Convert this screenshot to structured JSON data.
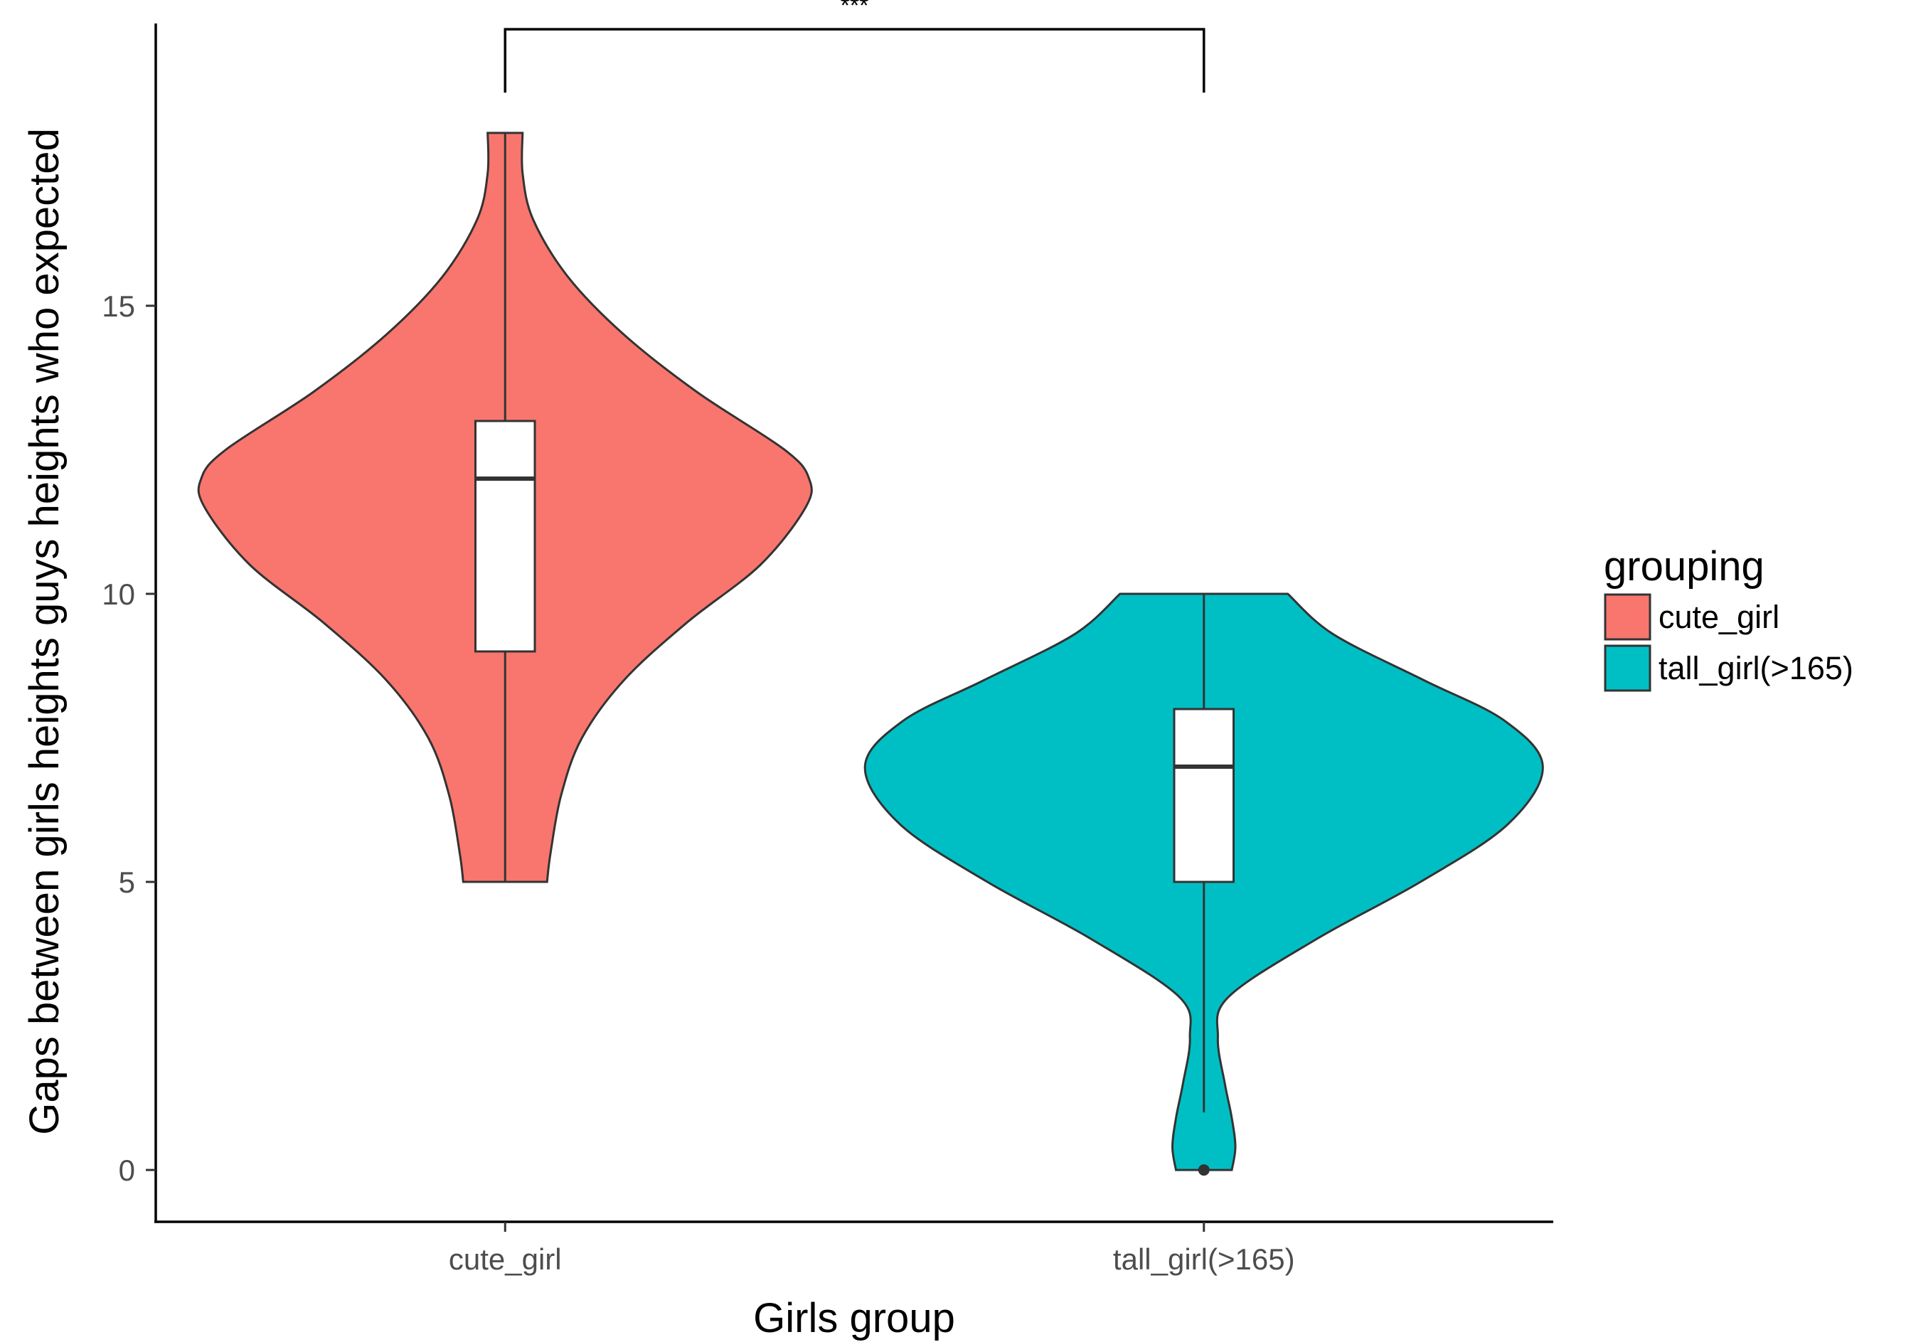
{
  "chart_data": {
    "type": "violin",
    "xlabel": "Girls group",
    "ylabel": "Gaps between girls heights guys heights who expected",
    "ylim": [
      -0.9,
      19.9
    ],
    "yticks": [
      0,
      5,
      10,
      15
    ],
    "categories": [
      "cute_girl",
      "tall_girl(>165)"
    ],
    "grid": false,
    "legend": {
      "title": "grouping",
      "position": "right",
      "entries": [
        {
          "label": "cute_girl",
          "color": "#F8766D"
        },
        {
          "label": "tall_girl(>165)",
          "color": "#00BFC4"
        }
      ]
    },
    "series": [
      {
        "name": "cute_girl",
        "color": "#F8766D",
        "violin_halfwidth": [
          [
            5,
            0.12
          ],
          [
            5.5,
            0.13
          ],
          [
            6.5,
            0.16
          ],
          [
            7.5,
            0.22
          ],
          [
            8.5,
            0.34
          ],
          [
            9.5,
            0.52
          ],
          [
            10.5,
            0.73
          ],
          [
            11.5,
            0.86
          ],
          [
            12,
            0.87
          ],
          [
            12.5,
            0.8
          ],
          [
            13.5,
            0.55
          ],
          [
            14.5,
            0.34
          ],
          [
            15.5,
            0.18
          ],
          [
            16.5,
            0.08
          ],
          [
            17.3,
            0.05
          ],
          [
            18,
            0.05
          ]
        ],
        "box": {
          "min": 5,
          "q1": 9,
          "median": 12,
          "q3": 13,
          "max": 18
        },
        "outliers": []
      },
      {
        "name": "tall_girl(>165)",
        "color": "#00BFC4",
        "violin_halfwidth": [
          [
            0,
            0.08
          ],
          [
            0.4,
            0.09
          ],
          [
            0.9,
            0.08
          ],
          [
            1.5,
            0.06
          ],
          [
            2.3,
            0.04
          ],
          [
            3,
            0.07
          ],
          [
            4,
            0.32
          ],
          [
            5,
            0.62
          ],
          [
            6,
            0.87
          ],
          [
            7,
            0.97
          ],
          [
            7.8,
            0.86
          ],
          [
            8.5,
            0.63
          ],
          [
            9.3,
            0.37
          ],
          [
            10,
            0.24
          ]
        ],
        "box": {
          "min": 1,
          "q1": 5,
          "median": 7,
          "q3": 8,
          "max": 10
        },
        "outliers": [
          0
        ]
      }
    ],
    "annotations": [
      {
        "type": "significance",
        "label": "***",
        "from": "cute_girl",
        "to": "tall_girl(>165)"
      }
    ]
  }
}
